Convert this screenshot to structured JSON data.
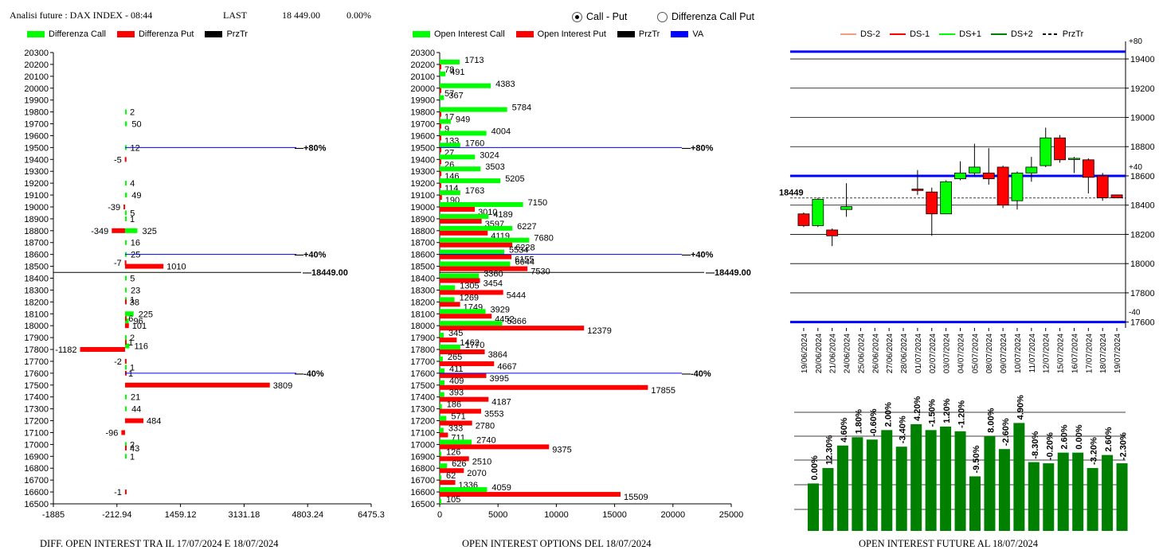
{
  "header": {
    "title": "Analisi future : DAX INDEX - 08:44",
    "last_label": "LAST",
    "last_value": "18 449.00",
    "last_change": "0.00%"
  },
  "radio": {
    "option1": "Call - Put",
    "option2": "Differenza Call Put",
    "selected": "Call - Put"
  },
  "colors": {
    "green": "#00ff00",
    "red": "#ff0000",
    "black": "#000000",
    "blue": "#0000ff",
    "dark_green": "#008000"
  },
  "chart_data": [
    {
      "type": "bar",
      "orientation": "horizontal",
      "title": "DIFF. OPEN INTEREST TRA IL 17/07/2024 E 18/07/2024",
      "legend": [
        "Differenza Call",
        "Differenza Put",
        "PrzTr"
      ],
      "strikes": [
        20300,
        20200,
        20100,
        20000,
        19900,
        19800,
        19700,
        19600,
        19500,
        19400,
        19300,
        19200,
        19100,
        19000,
        18900,
        18800,
        18700,
        18600,
        18500,
        18400,
        18300,
        18200,
        18100,
        18000,
        17900,
        17800,
        17700,
        17600,
        17500,
        17400,
        17300,
        17200,
        17100,
        17000,
        16900,
        16800,
        16700,
        16600,
        16500
      ],
      "x_ticks": [
        "-1885",
        "-212.94",
        "1459.12",
        "3131.18",
        "4803.24",
        "6475.3"
      ],
      "xlim": [
        -1885,
        6475.3
      ],
      "call_diff": [
        {
          "strike": 19800,
          "value": 2
        },
        {
          "strike": 19700,
          "value": 50
        },
        {
          "strike": 19500,
          "value": 12
        },
        {
          "strike": 19200,
          "value": 4
        },
        {
          "strike": 19100,
          "value": 49
        },
        {
          "strike": 18950,
          "value": 5
        },
        {
          "strike": 18900,
          "value": 1
        },
        {
          "strike": 18800,
          "value": 325
        },
        {
          "strike": 18700,
          "value": 16
        },
        {
          "strike": 18600,
          "value": 25
        },
        {
          "strike": 18400,
          "value": 5
        },
        {
          "strike": 18300,
          "value": 23
        },
        {
          "strike": 18220,
          "value": 1
        },
        {
          "strike": 18100,
          "value": 225
        },
        {
          "strike": 18040,
          "value": 96
        },
        {
          "strike": 17900,
          "value": 2
        },
        {
          "strike": 17830,
          "value": 116
        },
        {
          "strike": 17650,
          "value": 1
        },
        {
          "strike": 17400,
          "value": 21
        },
        {
          "strike": 17300,
          "value": 44
        },
        {
          "strike": 17000,
          "value": 2
        },
        {
          "strike": 16900,
          "value": 1
        }
      ],
      "put_diff": [
        {
          "strike": 19400,
          "value": -5
        },
        {
          "strike": 19000,
          "value": -39
        },
        {
          "strike": 18800,
          "value": -349
        },
        {
          "strike": 18530,
          "value": -7
        },
        {
          "strike": 18500,
          "value": 1010
        },
        {
          "strike": 18200,
          "value": 38
        },
        {
          "strike": 18060,
          "value": 6
        },
        {
          "strike": 18000,
          "value": 101
        },
        {
          "strike": 17860,
          "value": 1
        },
        {
          "strike": 17800,
          "value": -1182
        },
        {
          "strike": 17700,
          "value": -2
        },
        {
          "strike": 17600,
          "value": 1
        },
        {
          "strike": 17500,
          "value": 3809
        },
        {
          "strike": 17200,
          "value": 484
        },
        {
          "strike": 17100,
          "value": -96
        },
        {
          "strike": 16970,
          "value": 43
        },
        {
          "strike": 16600,
          "value": -1
        }
      ],
      "levels": [
        {
          "strike": 19500,
          "label": "+80%"
        },
        {
          "strike": 18600,
          "label": "+40%"
        },
        {
          "strike": 18449,
          "label": "18449.00"
        },
        {
          "strike": 17600,
          "label": "-40%"
        }
      ]
    },
    {
      "type": "bar",
      "orientation": "horizontal",
      "title": "OPEN INTEREST OPTIONS DEL 18/07/2024",
      "legend": [
        "Open Interest Call",
        "Open Interest Put",
        "PrzTr",
        "VA"
      ],
      "x_ticks": [
        "0",
        "5000",
        "10000",
        "15000",
        "20000",
        "25000"
      ],
      "xlim": [
        0,
        25000
      ],
      "rows": [
        {
          "strike": 20200,
          "call": 1713,
          "put": 78
        },
        {
          "strike": 20100,
          "call": 491,
          "put": null
        },
        {
          "strike": 20000,
          "call": 4383,
          "put": 57
        },
        {
          "strike": 19900,
          "call": 367,
          "put": null
        },
        {
          "strike": 19800,
          "call": 5784,
          "put": 17
        },
        {
          "strike": 19700,
          "call": 949,
          "put": 9
        },
        {
          "strike": 19600,
          "call": 4004,
          "put": 133
        },
        {
          "strike": 19500,
          "call": 1760,
          "put": 27
        },
        {
          "strike": 19400,
          "call": 3024,
          "put": 26
        },
        {
          "strike": 19300,
          "call": 3503,
          "put": 146
        },
        {
          "strike": 19200,
          "call": 5205,
          "put": 114
        },
        {
          "strike": 19100,
          "call": 1763,
          "put": 190
        },
        {
          "strike": 19000,
          "call": 7150,
          "put": 3010
        },
        {
          "strike": 18900,
          "call": 4189,
          "put": 3597
        },
        {
          "strike": 18800,
          "call": 6227,
          "put": 4119
        },
        {
          "strike": 18700,
          "call": 7680,
          "put": 6228
        },
        {
          "strike": 18600,
          "call": 5534,
          "put": 6155
        },
        {
          "strike": 18500,
          "call": 6044,
          "put": 7530
        },
        {
          "strike": 18400,
          "call": 3360,
          "put": 3454
        },
        {
          "strike": 18300,
          "call": 1305,
          "put": 5444
        },
        {
          "strike": 18200,
          "call": 1269,
          "put": 1749
        },
        {
          "strike": 18100,
          "call": 3929,
          "put": 4452
        },
        {
          "strike": 18000,
          "call": 5366,
          "put": 12379
        },
        {
          "strike": 17900,
          "call": 345,
          "put": 1462
        },
        {
          "strike": 17800,
          "call": 1770,
          "put": 3864
        },
        {
          "strike": 17700,
          "call": 265,
          "put": 4667
        },
        {
          "strike": 17600,
          "call": 411,
          "put": 3995
        },
        {
          "strike": 17500,
          "call": 409,
          "put": 17855
        },
        {
          "strike": 17400,
          "call": 393,
          "put": 4187
        },
        {
          "strike": 17300,
          "call": 186,
          "put": 3553
        },
        {
          "strike": 17200,
          "call": 571,
          "put": 2780
        },
        {
          "strike": 17100,
          "call": 333,
          "put": 711
        },
        {
          "strike": 17000,
          "call": 2740,
          "put": 9375
        },
        {
          "strike": 16900,
          "call": 126,
          "put": 2510
        },
        {
          "strike": 16800,
          "call": 626,
          "put": 2070
        },
        {
          "strike": 16700,
          "call": 62,
          "put": 1336
        },
        {
          "strike": 16600,
          "call": 4059,
          "put": 15509
        },
        {
          "strike": 16500,
          "call": 105,
          "put": null
        }
      ],
      "levels": [
        {
          "strike": 19500,
          "label": "+80%"
        },
        {
          "strike": 18600,
          "label": "+40%"
        },
        {
          "strike": 18449,
          "label": "18449.00"
        },
        {
          "strike": 17600,
          "label": "-40%"
        }
      ]
    },
    {
      "type": "candlestick",
      "legend": [
        "DS-2",
        "DS-1",
        "DS+1",
        "DS+2",
        "PrzTr"
      ],
      "y_ticks": [
        19400,
        19200,
        19000,
        18800,
        18600,
        18400,
        18200,
        18000,
        17800,
        17600
      ],
      "ylim": [
        17560,
        19520
      ],
      "bands": [
        {
          "value": 19450,
          "label": "+80"
        },
        {
          "value": 18600,
          "label": "+40"
        },
        {
          "value": 17600,
          "label": "-40"
        }
      ],
      "last": {
        "value": 18449,
        "label": "18449"
      },
      "candles": [
        {
          "date": "19/06/2024",
          "open": 18340,
          "close": 18260,
          "high": 18350,
          "low": 18250
        },
        {
          "date": "20/06/2024",
          "open": 18260,
          "close": 18440,
          "high": 18450,
          "low": 18250
        },
        {
          "date": "21/06/2024",
          "open": 18230,
          "close": 18190,
          "high": 18240,
          "low": 18120
        },
        {
          "date": "24/06/2024",
          "open": 18370,
          "close": 18390,
          "high": 18550,
          "low": 18320
        },
        {
          "date": "25/06/2024",
          "open": null,
          "close": null,
          "high": null,
          "low": null
        },
        {
          "date": "26/06/2024",
          "open": null,
          "close": null,
          "high": null,
          "low": null
        },
        {
          "date": "27/06/2024",
          "open": null,
          "close": null,
          "high": null,
          "low": null
        },
        {
          "date": "28/06/2024",
          "open": null,
          "close": null,
          "high": null,
          "low": null
        },
        {
          "date": "01/07/2024",
          "open": 18510,
          "close": 18500,
          "high": 18640,
          "low": 18470
        },
        {
          "date": "02/07/2024",
          "open": 18490,
          "close": 18340,
          "high": 18520,
          "low": 18190
        },
        {
          "date": "03/07/2024",
          "open": 18340,
          "close": 18560,
          "high": 18570,
          "low": 18340
        },
        {
          "date": "04/07/2024",
          "open": 18580,
          "close": 18620,
          "high": 18700,
          "low": 18570
        },
        {
          "date": "05/07/2024",
          "open": 18620,
          "close": 18660,
          "high": 18820,
          "low": 18600
        },
        {
          "date": "08/07/2024",
          "open": 18620,
          "close": 18580,
          "high": 18790,
          "low": 18540
        },
        {
          "date": "09/07/2024",
          "open": 18660,
          "close": 18400,
          "high": 18670,
          "low": 18380
        },
        {
          "date": "10/07/2024",
          "open": 18430,
          "close": 18620,
          "high": 18630,
          "low": 18370
        },
        {
          "date": "11/07/2024",
          "open": 18620,
          "close": 18660,
          "high": 18730,
          "low": 18560
        },
        {
          "date": "12/07/2024",
          "open": 18670,
          "close": 18860,
          "high": 18930,
          "low": 18660
        },
        {
          "date": "15/07/2024",
          "open": 18860,
          "close": 18710,
          "high": 18880,
          "low": 18690
        },
        {
          "date": "16/07/2024",
          "open": 18720,
          "close": 18720,
          "high": 18730,
          "low": 18620
        },
        {
          "date": "17/07/2024",
          "open": 18710,
          "close": 18590,
          "high": 18720,
          "low": 18480
        },
        {
          "date": "18/07/2024",
          "open": 18600,
          "close": 18450,
          "high": 18620,
          "low": 18430
        },
        {
          "date": "19/07/2024",
          "open": 18470,
          "close": 18450,
          "high": 18470,
          "low": 18450
        }
      ]
    },
    {
      "type": "bar",
      "title": "OPEN INTEREST FUTURE AL 18/07/2024",
      "bars": [
        {
          "value": 0.4,
          "label": "0.00%"
        },
        {
          "value": 0.53,
          "label": "12.30%"
        },
        {
          "value": 0.72,
          "label": "4.60%"
        },
        {
          "value": 0.79,
          "label": "1.80%"
        },
        {
          "value": 0.77,
          "label": "-0.60%"
        },
        {
          "value": 0.85,
          "label": "2.00%"
        },
        {
          "value": 0.71,
          "label": "-3.40%"
        },
        {
          "value": 0.9,
          "label": "4.20%"
        },
        {
          "value": 0.85,
          "label": "-1.50%"
        },
        {
          "value": 0.88,
          "label": "1.20%"
        },
        {
          "value": 0.84,
          "label": "-1.20%"
        },
        {
          "value": 0.46,
          "label": "-9.50%"
        },
        {
          "value": 0.8,
          "label": "8.00%"
        },
        {
          "value": 0.69,
          "label": "-2.60%"
        },
        {
          "value": 0.91,
          "label": "4.90%"
        },
        {
          "value": 0.58,
          "label": "-8.30%"
        },
        {
          "value": 0.57,
          "label": "-0.20%"
        },
        {
          "value": 0.66,
          "label": "2.60%"
        },
        {
          "value": 0.66,
          "label": "0.00%"
        },
        {
          "value": 0.53,
          "label": "-3.20%"
        },
        {
          "value": 0.64,
          "label": "2.60%"
        },
        {
          "value": 0.57,
          "label": "-2.30%"
        }
      ]
    }
  ]
}
